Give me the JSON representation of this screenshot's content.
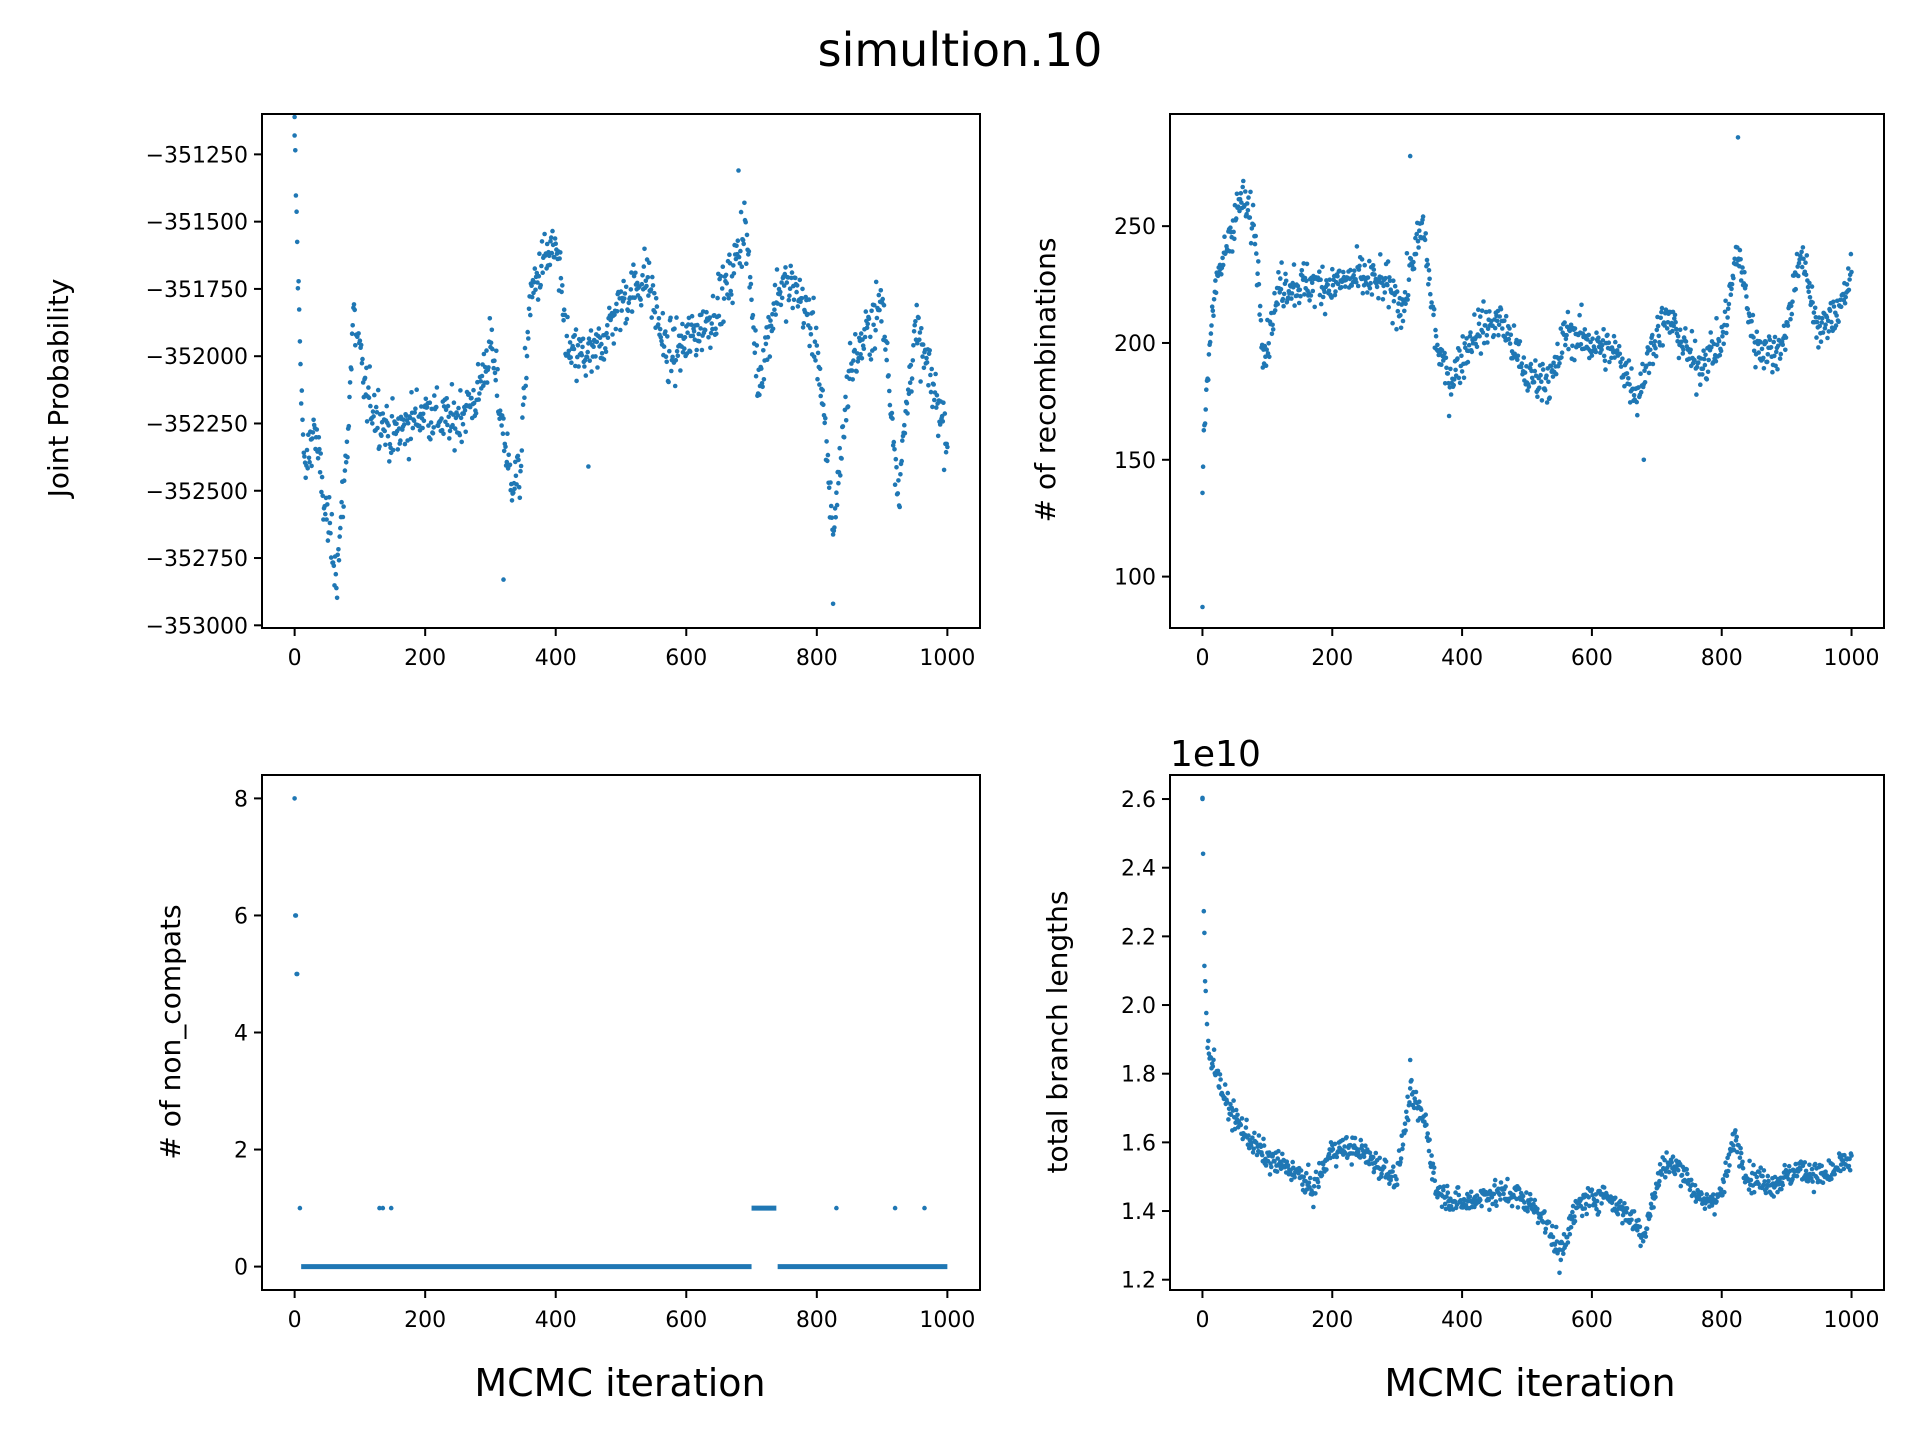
{
  "figure": {
    "title": "simultion.10",
    "point_color": "#1f77b4"
  },
  "chart_data": [
    {
      "type": "scatter",
      "panel": "top-left",
      "title": "",
      "xlabel": "",
      "ylabel": "Joint Probability",
      "xlim": [
        -50,
        1050
      ],
      "ylim": [
        -353010,
        -351100
      ],
      "xticks": [
        0,
        200,
        400,
        600,
        800,
        1000
      ],
      "yticks": [
        -351250,
        -351500,
        -351750,
        -352000,
        -352250,
        -352500,
        -352750,
        -353000
      ],
      "ytick_labels": [
        "−351250",
        "−351500",
        "−351750",
        "−352000",
        "−352250",
        "−352500",
        "−352750",
        "−353000"
      ],
      "offset_text": "",
      "x_range": [
        0,
        1000
      ],
      "trend": [
        [
          0,
          -351180
        ],
        [
          5,
          -351700
        ],
        [
          15,
          -352450
        ],
        [
          30,
          -352250
        ],
        [
          45,
          -352550
        ],
        [
          65,
          -352800
        ],
        [
          80,
          -352350
        ],
        [
          90,
          -351850
        ],
        [
          110,
          -352150
        ],
        [
          150,
          -352300
        ],
        [
          200,
          -352200
        ],
        [
          240,
          -352250
        ],
        [
          280,
          -352150
        ],
        [
          300,
          -351950
        ],
        [
          330,
          -352450
        ],
        [
          345,
          -352450
        ],
        [
          360,
          -351800
        ],
        [
          380,
          -351650
        ],
        [
          400,
          -351600
        ],
        [
          420,
          -352000
        ],
        [
          460,
          -352000
        ],
        [
          500,
          -351800
        ],
        [
          540,
          -351700
        ],
        [
          570,
          -352000
        ],
        [
          600,
          -351950
        ],
        [
          640,
          -351850
        ],
        [
          670,
          -351700
        ],
        [
          690,
          -351500
        ],
        [
          710,
          -352100
        ],
        [
          740,
          -351750
        ],
        [
          770,
          -351750
        ],
        [
          800,
          -351950
        ],
        [
          825,
          -352650
        ],
        [
          850,
          -352050
        ],
        [
          880,
          -351900
        ],
        [
          900,
          -351800
        ],
        [
          925,
          -352500
        ],
        [
          950,
          -351900
        ],
        [
          970,
          -352050
        ],
        [
          1000,
          -352300
        ]
      ],
      "noise": 110,
      "outliers": [
        [
          0,
          -351180
        ],
        [
          825,
          -352920
        ],
        [
          680,
          -351310
        ],
        [
          450,
          -352410
        ],
        [
          320,
          -352830
        ]
      ]
    },
    {
      "type": "scatter",
      "panel": "top-right",
      "title": "",
      "xlabel": "",
      "ylabel": "# of recombinations",
      "xlim": [
        -50,
        1050
      ],
      "ylim": [
        78,
        298
      ],
      "xticks": [
        0,
        200,
        400,
        600,
        800,
        1000
      ],
      "yticks": [
        100,
        150,
        200,
        250
      ],
      "ytick_labels": [
        "100",
        "150",
        "200",
        "250"
      ],
      "offset_text": "",
      "x_range": [
        0,
        1000
      ],
      "trend": [
        [
          0,
          140
        ],
        [
          5,
          175
        ],
        [
          15,
          215
        ],
        [
          40,
          245
        ],
        [
          60,
          262
        ],
        [
          80,
          250
        ],
        [
          95,
          195
        ],
        [
          120,
          225
        ],
        [
          160,
          225
        ],
        [
          200,
          225
        ],
        [
          240,
          228
        ],
        [
          280,
          225
        ],
        [
          310,
          215
        ],
        [
          320,
          232
        ],
        [
          340,
          250
        ],
        [
          360,
          200
        ],
        [
          380,
          183
        ],
        [
          420,
          205
        ],
        [
          460,
          210
        ],
        [
          500,
          185
        ],
        [
          540,
          185
        ],
        [
          560,
          205
        ],
        [
          600,
          200
        ],
        [
          640,
          195
        ],
        [
          670,
          178
        ],
        [
          700,
          205
        ],
        [
          720,
          210
        ],
        [
          760,
          190
        ],
        [
          800,
          200
        ],
        [
          825,
          240
        ],
        [
          850,
          200
        ],
        [
          880,
          195
        ],
        [
          900,
          205
        ],
        [
          920,
          240
        ],
        [
          950,
          205
        ],
        [
          970,
          210
        ],
        [
          1000,
          228
        ]
      ],
      "noise": 10,
      "outliers": [
        [
          0,
          87
        ],
        [
          825,
          288
        ],
        [
          320,
          280
        ],
        [
          680,
          150
        ]
      ]
    },
    {
      "type": "scatter",
      "panel": "bottom-left",
      "title": "",
      "xlabel": "MCMC iteration",
      "ylabel": "# of non_compats",
      "xlim": [
        -50,
        1050
      ],
      "ylim": [
        -0.4,
        8.4
      ],
      "xticks": [
        0,
        200,
        400,
        600,
        800,
        1000
      ],
      "yticks": [
        0,
        2,
        4,
        6,
        8
      ],
      "ytick_labels": [
        "0",
        "2",
        "4",
        "6",
        "8"
      ],
      "offset_text": "",
      "series": [
        {
          "points": [
            [
              0,
              8
            ],
            [
              1,
              6
            ],
            [
              2,
              6
            ],
            [
              3,
              5
            ],
            [
              4,
              5
            ],
            [
              8,
              1
            ],
            [
              130,
              1
            ],
            [
              135,
              1
            ],
            [
              148,
              1
            ],
            [
              830,
              1
            ],
            [
              920,
              1
            ],
            [
              965,
              1
            ]
          ]
        },
        {
          "segments": [
            [
              [
                10,
                0
              ],
              [
                700,
                0
              ]
            ],
            [
              [
                740,
                0
              ],
              [
                1000,
                0
              ]
            ],
            [
              [
                700,
                1
              ],
              [
                738,
                1
              ]
            ]
          ]
        }
      ]
    },
    {
      "type": "scatter",
      "panel": "bottom-right",
      "title": "",
      "xlabel": "MCMC iteration",
      "ylabel": "total branch lengths",
      "xlim": [
        -50,
        1050
      ],
      "ylim": [
        1.17,
        2.67
      ],
      "xticks": [
        0,
        200,
        400,
        600,
        800,
        1000
      ],
      "yticks": [
        1.2,
        1.4,
        1.6,
        1.8,
        2.0,
        2.2,
        2.4,
        2.6
      ],
      "ytick_labels": [
        "1.2",
        "1.4",
        "1.6",
        "1.8",
        "2.0",
        "2.2",
        "2.4",
        "2.6"
      ],
      "offset_text": "1e10",
      "x_range": [
        0,
        1000
      ],
      "trend": [
        [
          0,
          2.6
        ],
        [
          3,
          2.12
        ],
        [
          8,
          1.88
        ],
        [
          20,
          1.82
        ],
        [
          35,
          1.72
        ],
        [
          60,
          1.64
        ],
        [
          100,
          1.55
        ],
        [
          140,
          1.52
        ],
        [
          170,
          1.46
        ],
        [
          200,
          1.58
        ],
        [
          240,
          1.58
        ],
        [
          280,
          1.52
        ],
        [
          300,
          1.5
        ],
        [
          320,
          1.74
        ],
        [
          345,
          1.65
        ],
        [
          360,
          1.46
        ],
        [
          400,
          1.42
        ],
        [
          440,
          1.45
        ],
        [
          480,
          1.45
        ],
        [
          520,
          1.4
        ],
        [
          550,
          1.28
        ],
        [
          580,
          1.42
        ],
        [
          620,
          1.45
        ],
        [
          660,
          1.38
        ],
        [
          680,
          1.33
        ],
        [
          710,
          1.54
        ],
        [
          740,
          1.52
        ],
        [
          770,
          1.42
        ],
        [
          800,
          1.45
        ],
        [
          820,
          1.62
        ],
        [
          840,
          1.5
        ],
        [
          880,
          1.48
        ],
        [
          920,
          1.52
        ],
        [
          960,
          1.5
        ],
        [
          1000,
          1.55
        ]
      ],
      "noise": 0.04,
      "outliers": [
        [
          0,
          2.6
        ],
        [
          3,
          2.21
        ],
        [
          550,
          1.22
        ],
        [
          320,
          1.84
        ]
      ]
    }
  ]
}
